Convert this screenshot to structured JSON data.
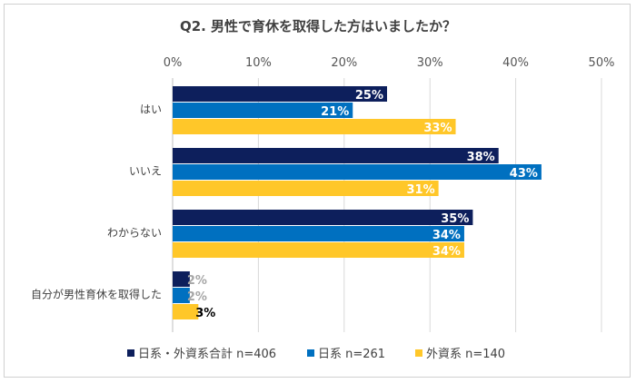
{
  "chart_data": {
    "type": "bar",
    "orientation": "horizontal",
    "title": "Q2. 男性で育休を取得した方はいましたか？",
    "categories": [
      "はい",
      "いいえ",
      "わからない",
      "自分が男性育休を取得した"
    ],
    "x_ticks": [
      "0%",
      "10%",
      "20%",
      "30%",
      "40%",
      "50%"
    ],
    "xlim": [
      0,
      50
    ],
    "grid": true,
    "legend_position": "bottom",
    "series": [
      {
        "name": "日系・外資系合計 n=406",
        "values": [
          25,
          38,
          35,
          2
        ],
        "labels": [
          "25%",
          "38%",
          "35%",
          "2%"
        ],
        "color": "#0D1F5C"
      },
      {
        "name": "日系 n=261",
        "values": [
          21,
          43,
          34,
          2
        ],
        "labels": [
          "21%",
          "43%",
          "34%",
          "2%"
        ],
        "color": "#0070C0"
      },
      {
        "name": "外資系 n=140",
        "values": [
          33,
          31,
          34,
          3
        ],
        "labels": [
          "33%",
          "31%",
          "34%",
          "3%"
        ],
        "color": "#FFC729"
      }
    ]
  },
  "colors": {
    "grid": "#d9d9d9",
    "label_light": "#ffffff",
    "label_small": "#a6a6a6",
    "label_dark": "#000000"
  }
}
